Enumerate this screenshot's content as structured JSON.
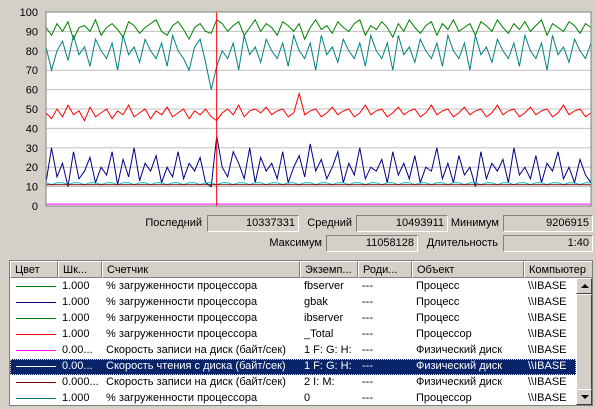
{
  "chart_data": {
    "type": "line",
    "ylim": [
      0,
      100
    ],
    "yticks": [
      "100",
      "90",
      "80",
      "70",
      "60",
      "50",
      "40",
      "30",
      "20",
      "10",
      "0"
    ],
    "x_count": 100,
    "time_bar_index": 31,
    "grid": true,
    "series": [
      {
        "color": "#008000",
        "values": [
          92,
          88,
          94,
          90,
          95,
          86,
          92,
          93,
          90,
          96,
          88,
          92,
          94,
          91,
          87,
          95,
          93,
          89,
          92,
          94,
          96,
          90,
          88,
          93,
          95,
          91,
          86,
          92,
          94,
          90,
          89,
          96,
          94,
          90,
          93,
          95,
          88,
          92,
          96,
          90,
          94,
          92,
          88,
          95,
          93,
          90,
          94,
          86,
          92,
          96,
          91,
          93,
          89,
          95,
          92,
          90,
          94,
          96,
          88,
          93,
          91,
          95,
          92,
          87,
          94,
          90,
          96,
          92,
          89,
          93,
          95,
          88,
          94,
          91,
          96,
          90,
          92,
          94,
          88,
          95,
          93,
          90,
          96,
          92,
          89,
          94,
          91,
          95,
          90,
          93,
          96,
          88,
          94,
          92,
          90,
          95,
          93,
          89,
          94,
          92
        ]
      },
      {
        "color": "#008080",
        "values": [
          82,
          70,
          80,
          85,
          75,
          88,
          78,
          82,
          72,
          86,
          80,
          76,
          84,
          70,
          88,
          78,
          82,
          74,
          86,
          80,
          76,
          84,
          72,
          88,
          80,
          76,
          70,
          82,
          86,
          74,
          60,
          72,
          80,
          76,
          84,
          70,
          88,
          78,
          82,
          74,
          86,
          80,
          76,
          84,
          72,
          88,
          80,
          76,
          84,
          70,
          88,
          78,
          82,
          74,
          86,
          80,
          76,
          84,
          72,
          88,
          80,
          76,
          84,
          70,
          88,
          78,
          82,
          74,
          86,
          80,
          76,
          84,
          72,
          88,
          80,
          76,
          84,
          70,
          88,
          78,
          82,
          74,
          86,
          80,
          76,
          84,
          72,
          88,
          80,
          76,
          84,
          70,
          88,
          78,
          82,
          74,
          86,
          80,
          76,
          84
        ]
      },
      {
        "color": "#ff0000",
        "values": [
          48,
          45,
          50,
          46,
          52,
          47,
          49,
          44,
          51,
          46,
          48,
          50,
          45,
          49,
          47,
          52,
          46,
          48,
          50,
          45,
          49,
          47,
          51,
          46,
          48,
          50,
          45,
          49,
          47,
          50,
          46,
          44,
          48,
          50,
          47,
          52,
          46,
          49,
          50,
          48,
          51,
          47,
          49,
          50,
          46,
          48,
          58,
          47,
          49,
          50,
          46,
          48,
          51,
          47,
          49,
          50,
          46,
          48,
          52,
          47,
          49,
          50,
          46,
          48,
          51,
          47,
          49,
          50,
          46,
          48,
          52,
          47,
          49,
          50,
          46,
          48,
          51,
          47,
          49,
          50,
          46,
          48,
          52,
          47,
          49,
          50,
          46,
          48,
          51,
          47,
          49,
          50,
          46,
          48,
          52,
          47,
          49,
          50,
          46,
          48
        ]
      },
      {
        "color": "#000080",
        "values": [
          12,
          30,
          15,
          22,
          10,
          28,
          14,
          18,
          25,
          12,
          20,
          16,
          28,
          11,
          24,
          15,
          30,
          13,
          22,
          18,
          26,
          12,
          20,
          15,
          28,
          14,
          22,
          18,
          25,
          12,
          10,
          36,
          20,
          15,
          28,
          22,
          14,
          30,
          12,
          25,
          18,
          22,
          14,
          28,
          12,
          20,
          26,
          15,
          32,
          18,
          24,
          14,
          20,
          28,
          12,
          22,
          16,
          30,
          14,
          20,
          18,
          24,
          12,
          28,
          16,
          22,
          14,
          26,
          12,
          20,
          18,
          30,
          14,
          22,
          12,
          26,
          16,
          20,
          10,
          28,
          14,
          22,
          18,
          24,
          12,
          30,
          16,
          20,
          14,
          26,
          12,
          22,
          18,
          28,
          14,
          20,
          12,
          24,
          16,
          12
        ]
      },
      {
        "color": "#00c0c0",
        "values": [
          12,
          11,
          12,
          12,
          11,
          12,
          12,
          11,
          12,
          12,
          11,
          12,
          12,
          11,
          12,
          12,
          11,
          12,
          12,
          11,
          12,
          12,
          11,
          12,
          12,
          11,
          12,
          12,
          11,
          12,
          12,
          11,
          12,
          12,
          11,
          12,
          12,
          11,
          12,
          12,
          11,
          12,
          12,
          11,
          12,
          12,
          11,
          12,
          12,
          11,
          12,
          12,
          11,
          12,
          12,
          11,
          12,
          12,
          11,
          12,
          12,
          11,
          12,
          12,
          11,
          12,
          12,
          11,
          12,
          12,
          11,
          12,
          12,
          11,
          12,
          12,
          11,
          12,
          12,
          11,
          12,
          12,
          11,
          12,
          12,
          11,
          12,
          12,
          11,
          12,
          12,
          11,
          12,
          12,
          11,
          12,
          12,
          11,
          12,
          12
        ]
      },
      {
        "color": "#800000",
        "values": [
          11,
          11,
          11,
          11,
          11,
          11,
          11,
          11,
          11,
          11,
          11,
          11,
          11,
          11,
          11,
          11,
          11,
          11,
          11,
          11,
          11,
          11,
          11,
          11,
          11,
          11,
          11,
          11,
          11,
          11,
          11,
          11,
          11,
          11,
          11,
          11,
          11,
          11,
          11,
          11,
          11,
          11,
          11,
          11,
          11,
          11,
          11,
          11,
          11,
          11,
          11,
          11,
          11,
          11,
          11,
          11,
          11,
          11,
          11,
          11,
          11,
          11,
          11,
          11,
          11,
          11,
          11,
          11,
          11,
          11,
          11,
          11,
          11,
          11,
          11,
          11,
          11,
          11,
          11,
          11,
          11,
          11,
          11,
          11,
          11,
          11,
          11,
          11,
          11,
          11,
          11,
          11,
          11,
          11,
          11,
          11,
          11,
          11,
          11,
          11
        ]
      },
      {
        "color": "#ff00ff",
        "values": [
          1,
          1,
          1,
          1,
          1,
          1,
          1,
          1,
          1,
          1,
          1,
          1,
          1,
          1,
          1,
          1,
          1,
          1,
          1,
          1,
          1,
          1,
          1,
          1,
          1,
          1,
          1,
          1,
          1,
          1,
          1,
          1,
          1,
          1,
          1,
          1,
          1,
          1,
          1,
          1,
          1,
          1,
          1,
          1,
          1,
          1,
          1,
          1,
          1,
          1,
          1,
          1,
          1,
          1,
          1,
          1,
          1,
          1,
          1,
          1,
          1,
          1,
          1,
          1,
          1,
          1,
          1,
          1,
          1,
          1,
          1,
          1,
          1,
          1,
          1,
          1,
          1,
          1,
          1,
          1,
          1,
          1,
          1,
          1,
          1,
          1,
          1,
          1,
          1,
          1,
          1,
          1,
          1,
          1,
          1,
          1,
          1,
          1,
          1,
          1
        ]
      }
    ]
  },
  "stats": {
    "last_label": "Последний",
    "last_value": "10337331",
    "avg_label": "Средний",
    "avg_value": "10493911",
    "min_label": "Минимум",
    "min_value": "9206915",
    "max_label": "Максимум",
    "max_value": "11058128",
    "duration_label": "Длительность",
    "duration_value": "1:40"
  },
  "table": {
    "headers": [
      "Цвет",
      "Шк...",
      "Счетчик",
      "Экземп...",
      "Роди...",
      "Объект",
      "Компьютер"
    ],
    "rows": [
      {
        "color": "#008000",
        "scale": "1.000",
        "counter": "% загруженности процессора",
        "instance": "fbserver",
        "parent": "---",
        "object": "Процесс",
        "computer": "\\\\IBASE"
      },
      {
        "color": "#000080",
        "scale": "1.000",
        "counter": "% загруженности процессора",
        "instance": "gbak",
        "parent": "---",
        "object": "Процесс",
        "computer": "\\\\IBASE"
      },
      {
        "color": "#008000",
        "scale": "1.000",
        "counter": "% загруженности процессора",
        "instance": "ibserver",
        "parent": "---",
        "object": "Процесс",
        "computer": "\\\\IBASE"
      },
      {
        "color": "#ff0000",
        "scale": "1.000",
        "counter": "% загруженности процессора",
        "instance": "_Total",
        "parent": "---",
        "object": "Процессор",
        "computer": "\\\\IBASE"
      },
      {
        "color": "#ff00ff",
        "scale": "0.00...",
        "counter": "Скорость записи на диск (байт/сек)",
        "instance": "1 F: G: H:",
        "parent": "---",
        "object": "Физический диск",
        "computer": "\\\\IBASE"
      },
      {
        "color": "#000000",
        "scale": "0.00...",
        "counter": "Скорость чтения с диска (байт/сек)",
        "instance": "1 F: G: H:",
        "parent": "---",
        "object": "Физический диск",
        "computer": "\\\\IBASE"
      },
      {
        "color": "#800000",
        "scale": "0.000...",
        "counter": "Скорость записи на диск (байт/сек)",
        "instance": "2 I: M:",
        "parent": "---",
        "object": "Физический диск",
        "computer": "\\\\IBASE"
      },
      {
        "color": "#008080",
        "scale": "1.000",
        "counter": "% загруженности процессора",
        "instance": "0",
        "parent": "---",
        "object": "Процессор",
        "computer": "\\\\IBASE"
      }
    ]
  }
}
